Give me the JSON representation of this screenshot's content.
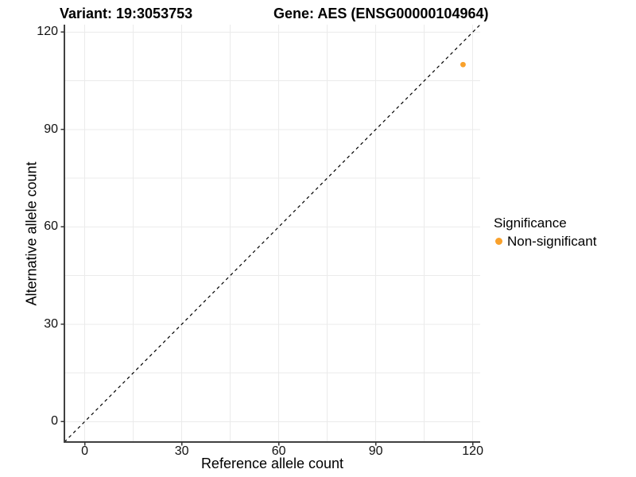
{
  "chart_data": {
    "type": "scatter",
    "title_left": "Variant: 19:3053753",
    "title_right": "Gene: AES (ENSG00000104964)",
    "xlabel": "Reference allele count",
    "ylabel": "Alternative allele count",
    "xlim": [
      -6.3,
      122.3
    ],
    "ylim": [
      -6.3,
      122.3
    ],
    "x_ticks": [
      0,
      30,
      60,
      90,
      120
    ],
    "y_ticks": [
      0,
      30,
      60,
      90,
      120
    ],
    "x_minor_gridlines": [
      15,
      45,
      75,
      105
    ],
    "y_minor_gridlines": [
      15,
      45,
      75,
      105
    ],
    "grid": "on",
    "points": [
      {
        "x": 117,
        "y": 110,
        "series": "Non-significant"
      }
    ],
    "reference_line": {
      "type": "identity y = x",
      "style": "dashed",
      "color": "#000000"
    },
    "legend": {
      "position": "right",
      "title": "Significance",
      "entries": [
        {
          "label": "Non-significant",
          "color": "#F9A12B",
          "marker": "circle"
        }
      ]
    },
    "colors": {
      "point": "#F9A12B",
      "gridline": "#EBEBEB",
      "axis_line": "#404040",
      "tick": "#333333",
      "text": "#000000"
    }
  }
}
